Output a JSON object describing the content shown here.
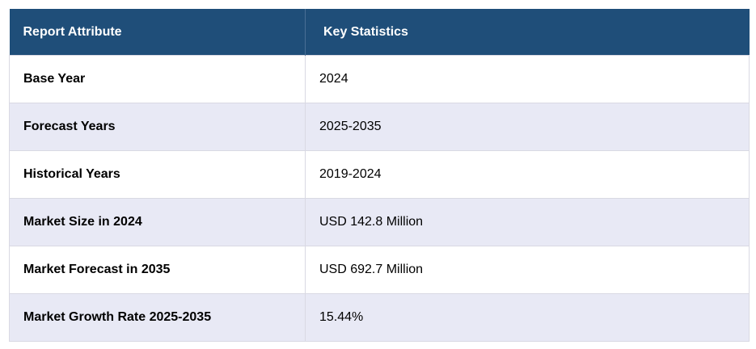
{
  "table": {
    "headers": [
      "Report Attribute",
      "Key Statistics"
    ],
    "rows": [
      {
        "attribute": "Base Year",
        "value": "2024"
      },
      {
        "attribute": "Forecast Years",
        "value": "2025-2035"
      },
      {
        "attribute": "Historical Years",
        "value": "2019-2024"
      },
      {
        "attribute": "Market Size in 2024",
        "value": "USD 142.8 Million"
      },
      {
        "attribute": "Market Forecast in 2035",
        "value": "USD 692.7 Million"
      },
      {
        "attribute": "Market Growth Rate 2025-2035",
        "value": "15.44%"
      }
    ]
  },
  "colors": {
    "header_bg": "#1f4e79",
    "header_text": "#ffffff",
    "row_alt_bg": "#e8e9f5",
    "row_bg": "#ffffff"
  }
}
